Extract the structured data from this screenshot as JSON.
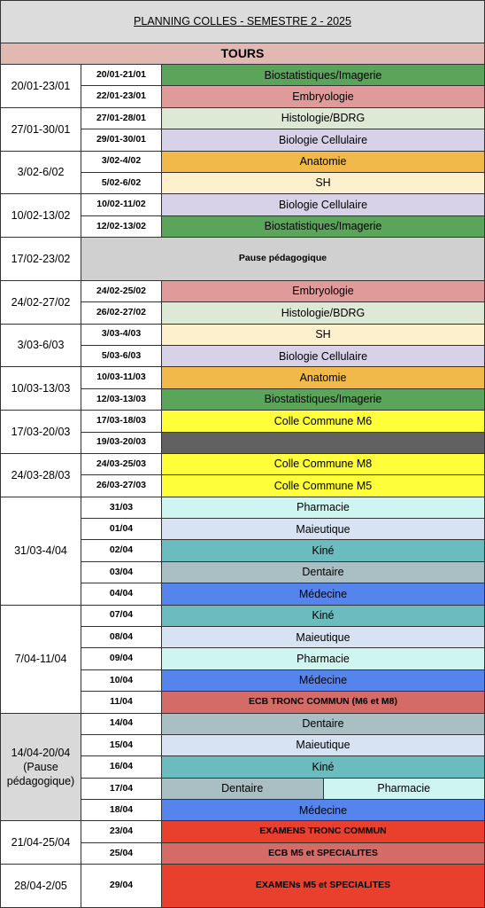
{
  "header": {
    "title": "PLANNING COLLES - SEMESTRE 2 - 2025",
    "subtitle": "TOURS"
  },
  "groups": [
    {
      "period": "20/01-23/01",
      "rows": [
        {
          "dates": "20/01-21/01",
          "cells": [
            {
              "subject": "Biostatistiques/Imagerie",
              "color": "#5aa55a"
            }
          ]
        },
        {
          "dates": "22/01-23/01",
          "cells": [
            {
              "subject": "Embryologie",
              "color": "#e09a9a"
            }
          ]
        }
      ]
    },
    {
      "period": "27/01-30/01",
      "rows": [
        {
          "dates": "27/01-28/01",
          "cells": [
            {
              "subject": "Histologie/BDRG",
              "color": "#dde8d5"
            }
          ]
        },
        {
          "dates": "29/01-30/01",
          "cells": [
            {
              "subject": "Biologie Cellulaire",
              "color": "#d8d2e8"
            }
          ]
        }
      ]
    },
    {
      "period": "3/02-6/02",
      "rows": [
        {
          "dates": "3/02-4/02",
          "cells": [
            {
              "subject": "Anatomie",
              "color": "#f0b94a"
            }
          ]
        },
        {
          "dates": "5/02-6/02",
          "cells": [
            {
              "subject": "SH",
              "color": "#fdf0cc"
            }
          ]
        }
      ]
    },
    {
      "period": "10/02-13/02",
      "rows": [
        {
          "dates": "10/02-11/02",
          "cells": [
            {
              "subject": "Biologie Cellulaire",
              "color": "#d8d2e8"
            }
          ]
        },
        {
          "dates": "12/02-13/02",
          "cells": [
            {
              "subject": "Biostatistiques/Imagerie",
              "color": "#5aa55a"
            }
          ]
        }
      ]
    },
    {
      "period": "17/02-23/02",
      "rows": [
        {
          "cells": [
            {
              "subject": "Pause pédagogique",
              "color": "#d0d0d0",
              "bold": true
            }
          ]
        }
      ]
    },
    {
      "period": "24/02-27/02",
      "rows": [
        {
          "dates": "24/02-25/02",
          "cells": [
            {
              "subject": "Embryologie",
              "color": "#e09a9a"
            }
          ]
        },
        {
          "dates": "26/02-27/02",
          "cells": [
            {
              "subject": "Histologie/BDRG",
              "color": "#dde8d5"
            }
          ]
        }
      ]
    },
    {
      "period": "3/03-6/03",
      "rows": [
        {
          "dates": "3/03-4/03",
          "cells": [
            {
              "subject": "SH",
              "color": "#fdf0cc"
            }
          ]
        },
        {
          "dates": "5/03-6/03",
          "cells": [
            {
              "subject": "Biologie Cellulaire",
              "color": "#d8d2e8"
            }
          ]
        }
      ]
    },
    {
      "period": "10/03-13/03",
      "rows": [
        {
          "dates": "10/03-11/03",
          "cells": [
            {
              "subject": "Anatomie",
              "color": "#f0b94a"
            }
          ]
        },
        {
          "dates": "12/03-13/03",
          "cells": [
            {
              "subject": "Biostatistiques/Imagerie",
              "color": "#5aa55a"
            }
          ]
        }
      ]
    },
    {
      "period": "17/03-20/03",
      "rows": [
        {
          "dates": "17/03-18/03",
          "cells": [
            {
              "subject": "Colle Commune M6",
              "color": "#fefe3a"
            }
          ]
        },
        {
          "dates": "19/03-20/03",
          "cells": [
            {
              "color": "#616161"
            }
          ]
        }
      ]
    },
    {
      "period": "24/03-28/03",
      "rows": [
        {
          "dates": "24/03-25/03",
          "cells": [
            {
              "subject": "Colle Commune M8",
              "color": "#fefe3a"
            }
          ]
        },
        {
          "dates": "26/03-27/03",
          "cells": [
            {
              "subject": "Colle Commune M5",
              "color": "#fefe3a"
            }
          ]
        }
      ]
    },
    {
      "period": "31/03-4/04",
      "rows": [
        {
          "dates": "31/03",
          "cells": [
            {
              "subject": "Pharmacie",
              "color": "#cef5f0"
            }
          ]
        },
        {
          "dates": "01/04",
          "cells": [
            {
              "subject": "Maieutique",
              "color": "#d7e3f2"
            }
          ]
        },
        {
          "dates": "02/04",
          "cells": [
            {
              "subject": "Kiné",
              "color": "#6bbcbf"
            }
          ]
        },
        {
          "dates": "03/04",
          "cells": [
            {
              "subject": "Dentaire",
              "color": "#a9bfc4"
            }
          ]
        },
        {
          "dates": "04/04",
          "cells": [
            {
              "subject": "Médecine",
              "color": "#5585ec"
            }
          ]
        }
      ]
    },
    {
      "period": "7/04-11/04",
      "rows": [
        {
          "dates": "07/04",
          "cells": [
            {
              "subject": "Kiné",
              "color": "#6bbcbf"
            }
          ]
        },
        {
          "dates": "08/04",
          "cells": [
            {
              "subject": "Maieutique",
              "color": "#d7e3f2"
            }
          ]
        },
        {
          "dates": "09/04",
          "cells": [
            {
              "subject": "Pharmacie",
              "color": "#cef5f0"
            }
          ]
        },
        {
          "dates": "10/04",
          "cells": [
            {
              "subject": "Médecine",
              "color": "#5585ec"
            }
          ]
        },
        {
          "dates": "11/04",
          "cells": [
            {
              "subject": "ECB TRONC COMMUN (M6 et M8)",
              "color": "#d46b66",
              "bold": true
            }
          ]
        }
      ]
    },
    {
      "period": "14/04-20/04 (Pause pédagogique)",
      "color": "#d9d9d9",
      "rows": [
        {
          "dates": "14/04",
          "cells": [
            {
              "subject": "Dentaire",
              "color": "#a9bfc4"
            }
          ]
        },
        {
          "dates": "15/04",
          "cells": [
            {
              "subject": "Maieutique",
              "color": "#d7e3f2"
            }
          ]
        },
        {
          "dates": "16/04",
          "cells": [
            {
              "subject": "Kiné",
              "color": "#6bbcbf"
            }
          ]
        },
        {
          "dates": "17/04",
          "cells": [
            {
              "subject": "Dentaire",
              "color": "#a9bfc4"
            },
            {
              "subject": "Pharmacie",
              "color": "#cef5f0"
            }
          ]
        },
        {
          "dates": "18/04",
          "cells": [
            {
              "subject": "Médecine",
              "color": "#5585ec"
            }
          ]
        }
      ]
    },
    {
      "period": "21/04-25/04",
      "rows": [
        {
          "dates": "23/04",
          "cells": [
            {
              "subject": "EXAMENS TRONC COMMUN",
              "color": "#e8402c",
              "bold": true
            }
          ]
        },
        {
          "dates": "25/04",
          "cells": [
            {
              "subject": "ECB M5 et SPECIALITES",
              "color": "#d46b66",
              "bold": true
            }
          ]
        }
      ]
    },
    {
      "period": "28/04-2/05",
      "rows": [
        {
          "dates": "29/04",
          "cells": [
            {
              "subject": "EXAMENs M5 et SPECIALITES",
              "color": "#e8402c",
              "bold": true
            }
          ]
        }
      ]
    }
  ]
}
